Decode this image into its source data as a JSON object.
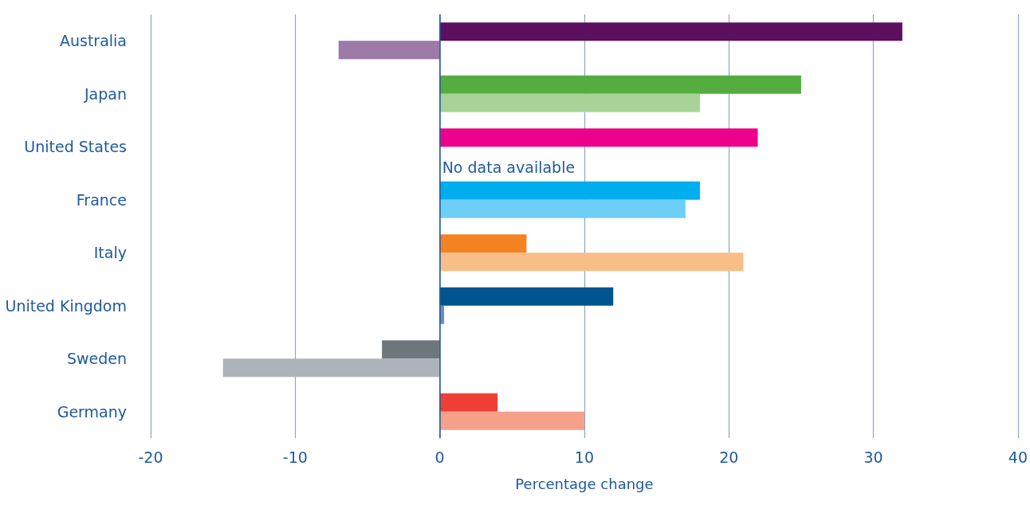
{
  "chart_data": {
    "type": "bar",
    "orientation": "horizontal",
    "xlabel": "Percentage change",
    "categories": [
      "Australia",
      "Japan",
      "United States",
      "France",
      "Italy",
      "United Kingdom",
      "Sweden",
      "Germany"
    ],
    "series": [
      {
        "values": [
          32,
          25,
          22,
          18,
          6,
          12,
          -4,
          4
        ],
        "colors": [
          "#5c0f5f",
          "#55ad3f",
          "#ec008c",
          "#00aeef",
          "#f58220",
          "#00558f",
          "#6d777b",
          "#ef3e36"
        ]
      },
      {
        "values": [
          -7,
          18,
          null,
          17,
          21,
          0.3,
          -15,
          10
        ],
        "colors": [
          "#9b7aa8",
          "#a8d396",
          "#f48fc4",
          "#6dcff6",
          "#f9bd87",
          "#6a8ac6",
          "#adb3b9",
          "#f6a08a"
        ]
      }
    ],
    "xlim": [
      -20,
      40
    ],
    "xticks": [
      -20,
      -10,
      0,
      10,
      20,
      30,
      40
    ],
    "grid": "x",
    "ref_lines": [
      {
        "axis": "x",
        "value": 0,
        "color": "#1f5aa0"
      }
    ],
    "annotations": [
      {
        "text": "No data available",
        "x": 0,
        "y": "United States"
      }
    ]
  }
}
